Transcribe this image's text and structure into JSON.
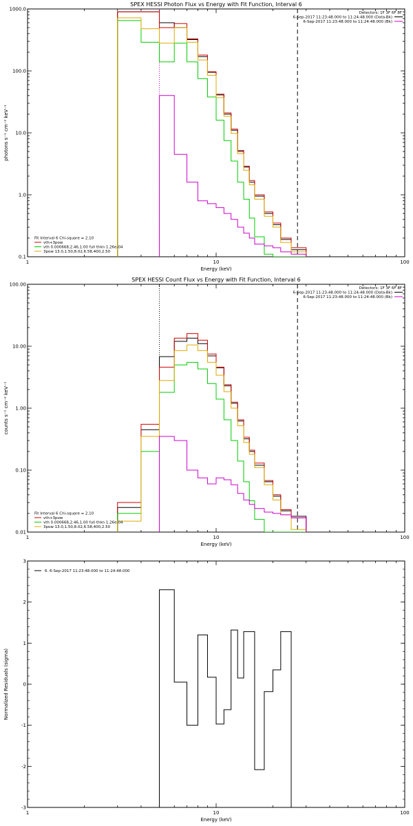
{
  "chart_data": [
    {
      "id": "photon",
      "type": "line",
      "title": "SPEX HESSI Photon Flux vs Energy with Fit Function, Interval 6",
      "xlabel": "Energy (keV)",
      "ylabel": "photons s⁻¹ cm⁻² keV⁻¹",
      "xscale": "log",
      "yscale": "log",
      "xlim": [
        1,
        100
      ],
      "ylim": [
        0.1,
        1000
      ],
      "x_ticks": [
        {
          "v": 1,
          "label": "1"
        },
        {
          "v": 10,
          "label": "10"
        },
        {
          "v": 100,
          "label": "100"
        }
      ],
      "y_ticks": [
        {
          "v": 0.1,
          "label": "0.1"
        },
        {
          "v": 1,
          "label": "1.0"
        },
        {
          "v": 10,
          "label": "10.0"
        },
        {
          "v": 100,
          "label": "100.0"
        },
        {
          "v": 1000,
          "label": "1000.0"
        }
      ],
      "info_lines": [
        {
          "text": "Detectors: 1F 3F 6F 8F",
          "color": null
        },
        {
          "text": "6-Sep-2017 11:23:48.000 to 11:24:48.000 (Data-Bk)",
          "color": "#000000"
        },
        {
          "text": "6-Sep-2017 11:23:48.000 to 11:24:48.000 (Bk)",
          "color": "#cc00cc"
        }
      ],
      "legend_header": "Fit Interval 6   Chi-square = 2.10",
      "legend_location": "bottom-left",
      "vlines": [
        {
          "x": 5.0,
          "style": "dotted",
          "color": "#cc00cc"
        },
        {
          "x": 27.0,
          "style": "dashed",
          "color": "#000000"
        }
      ],
      "bin_edges": [
        3,
        4,
        5,
        6,
        7,
        8,
        9,
        10,
        11,
        12,
        13,
        14,
        15,
        16,
        18,
        20,
        22,
        25,
        30
      ],
      "series": [
        {
          "name": "",
          "color": "#000000",
          "values": [
            900,
            900,
            600,
            500,
            320,
            170,
            95,
            41,
            20,
            11,
            5.0,
            2.8,
            1.6,
            0.95,
            0.5,
            0.33,
            0.19,
            0.13
          ]
        },
        {
          "name": "vth+3pow",
          "color": "#cc0000",
          "values": [
            900,
            900,
            500,
            580,
            330,
            180,
            97,
            42,
            21,
            11.5,
            5.2,
            2.9,
            1.7,
            1.0,
            0.53,
            0.35,
            0.2,
            0.14
          ]
        },
        {
          "name": "vth 0.000668,2.46,1.00   full thkn 1.26e-04",
          "color": "#00cc00",
          "values": [
            650,
            290,
            140,
            280,
            140,
            75,
            38,
            16,
            7.5,
            3.5,
            1.6,
            0.85,
            0.42,
            0.21,
            0.11,
            0.1,
            0.1,
            0.1
          ]
        },
        {
          "name": "3pow 13.0,1.50,8.02,6.58,400,2.50",
          "color": "#ddaa00",
          "values": [
            720,
            480,
            280,
            500,
            290,
            150,
            85,
            37,
            18.5,
            9.8,
            4.6,
            2.5,
            1.45,
            0.85,
            0.45,
            0.3,
            0.17,
            0.12
          ]
        },
        {
          "name": "",
          "color": "#cc00cc",
          "values": [
            null,
            null,
            40,
            4.5,
            1.6,
            0.8,
            0.72,
            0.62,
            0.5,
            0.4,
            0.3,
            0.24,
            0.2,
            0.16,
            0.15,
            0.14,
            0.12,
            0.11
          ]
        }
      ]
    },
    {
      "id": "count",
      "type": "line",
      "title": "SPEX HESSI Count Flux vs Energy with Fit Function, Interval 6",
      "xlabel": "Energy (keV)",
      "ylabel": "counts s⁻¹ cm⁻² keV⁻¹",
      "xscale": "log",
      "yscale": "log",
      "xlim": [
        1,
        100
      ],
      "ylim": [
        0.01,
        100
      ],
      "x_ticks": [
        {
          "v": 1,
          "label": "1"
        },
        {
          "v": 10,
          "label": "10"
        },
        {
          "v": 100,
          "label": "100"
        }
      ],
      "y_ticks": [
        {
          "v": 0.01,
          "label": "0.01"
        },
        {
          "v": 0.1,
          "label": "0.10"
        },
        {
          "v": 1,
          "label": "1.00"
        },
        {
          "v": 10,
          "label": "10.00"
        },
        {
          "v": 100,
          "label": "100.00"
        }
      ],
      "info_lines": [
        {
          "text": "Detectors: 1F 3F 6F 8F",
          "color": null
        },
        {
          "text": "6-Sep-2017 11:23:48.000 to 11:24:48.000 (Data-Bk)",
          "color": "#000000"
        },
        {
          "text": "6-Sep-2017 11:23:48.000 to 11:24:48.000 (Bk)",
          "color": "#cc00cc"
        }
      ],
      "legend_header": "Fit Interval 6   Chi-square = 2.10",
      "legend_location": "bottom-left",
      "vlines": [
        {
          "x": 5.0,
          "style": "dotted",
          "color": "#000000"
        },
        {
          "x": 27.0,
          "style": "dashed",
          "color": "#000000"
        }
      ],
      "bin_edges": [
        3,
        4,
        5,
        6,
        7,
        8,
        9,
        10,
        11,
        12,
        13,
        14,
        15,
        16,
        18,
        20,
        22,
        25,
        30
      ],
      "series": [
        {
          "name": "",
          "color": "#000000",
          "values": [
            0.025,
            0.45,
            6.8,
            12.0,
            13.5,
            11.0,
            7.0,
            4.5,
            2.3,
            1.2,
            0.62,
            0.32,
            0.2,
            0.12,
            0.065,
            0.038,
            0.022,
            0.018
          ]
        },
        {
          "name": "vth+3pow",
          "color": "#cc0000",
          "values": [
            0.03,
            0.55,
            4.6,
            13.5,
            16.0,
            12.5,
            7.5,
            4.6,
            2.4,
            1.25,
            0.65,
            0.34,
            0.21,
            0.13,
            0.068,
            0.04,
            0.023,
            0.017
          ]
        },
        {
          "name": "vth 0.000668,2.46,1.00   full thkn 1.26e-04",
          "color": "#00cc00",
          "values": [
            0.02,
            0.2,
            1.8,
            5.0,
            5.5,
            4.3,
            2.5,
            1.4,
            0.65,
            0.3,
            0.14,
            0.065,
            0.032,
            0.016,
            0.01,
            0.01,
            0.01,
            0.01
          ]
        },
        {
          "name": "3pow 13.0,1.50,8.02,6.58,400,2.50",
          "color": "#ddaa00",
          "values": [
            0.015,
            0.35,
            2.8,
            8.5,
            10.5,
            8.5,
            5.5,
            3.4,
            1.85,
            1.0,
            0.52,
            0.28,
            0.18,
            0.11,
            0.058,
            0.033,
            0.019,
            0.011
          ]
        },
        {
          "name": "",
          "color": "#cc00cc",
          "values": [
            null,
            null,
            0.35,
            0.3,
            0.1,
            0.075,
            0.06,
            0.075,
            0.07,
            0.058,
            0.042,
            0.033,
            0.028,
            0.024,
            0.021,
            0.02,
            0.019,
            0.017
          ]
        }
      ]
    },
    {
      "id": "residuals",
      "type": "line",
      "title": "",
      "xlabel": "Energy (keV)",
      "ylabel": "Normalized Residuals (sigma)",
      "xscale": "log",
      "yscale": "linear",
      "xlim": [
        1,
        100
      ],
      "ylim": [
        -3,
        3
      ],
      "x_ticks": [
        {
          "v": 1,
          "label": "1"
        },
        {
          "v": 10,
          "label": "10"
        },
        {
          "v": 100,
          "label": "100"
        }
      ],
      "y_ticks": [
        {
          "v": -3,
          "label": "-3"
        },
        {
          "v": -2,
          "label": "-2"
        },
        {
          "v": -1,
          "label": "-1"
        },
        {
          "v": 0,
          "label": "0"
        },
        {
          "v": 1,
          "label": "1"
        },
        {
          "v": 2,
          "label": "2"
        },
        {
          "v": 3,
          "label": "3"
        }
      ],
      "info_lines": [],
      "legend_header": "",
      "legend_location": "top-left",
      "vlines": [],
      "bin_edges": [
        5,
        6,
        7,
        8,
        9,
        10,
        11,
        12,
        13,
        14,
        16,
        18,
        20,
        22,
        25,
        27
      ],
      "series": [
        {
          "name": "6.  6-Sep-2017 11:23:48.000 to 11:24:48.000",
          "color": "#000000",
          "values": [
            2.3,
            0.05,
            -1.0,
            1.2,
            0.17,
            -0.97,
            -0.62,
            1.32,
            0.15,
            1.28,
            -2.08,
            -0.18,
            0.35,
            1.28,
            null
          ]
        }
      ]
    }
  ]
}
